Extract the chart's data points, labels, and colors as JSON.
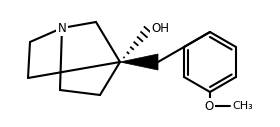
{
  "background": "#ffffff",
  "line_color": "#000000",
  "line_width": 1.5,
  "figsize": [
    2.8,
    1.27
  ],
  "dpi": 100,
  "N_label": "N",
  "OH_label": "OH",
  "O_label": "O",
  "font_size_labels": 8.5
}
